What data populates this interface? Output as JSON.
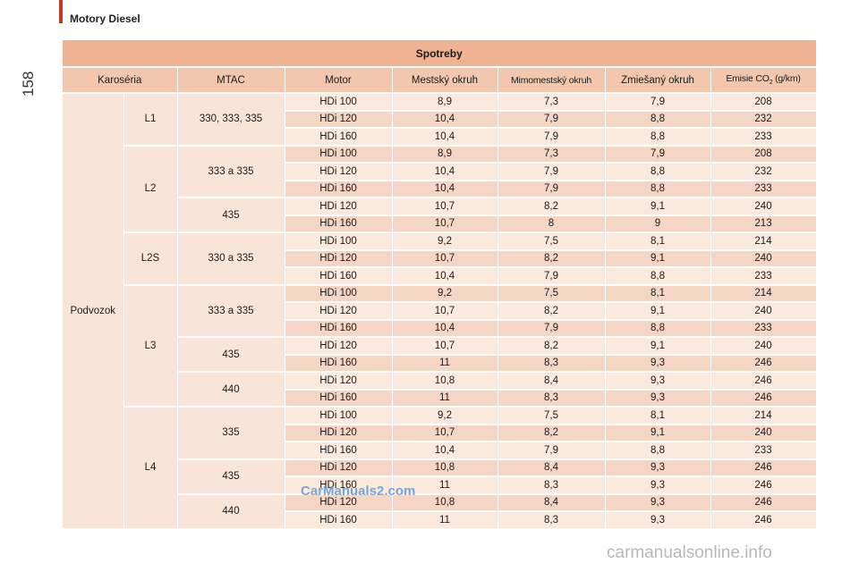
{
  "page": {
    "number": "158",
    "section_title": "Motory Diesel"
  },
  "table": {
    "title": "Spotreby",
    "headers": [
      "Karoséria",
      "MTAC",
      "Motor",
      "Mestský okruh",
      "Mimomestský okruh",
      "Zmiešaný okruh"
    ],
    "co2_header": {
      "prefix": "Emisie CO",
      "sub": "2",
      "suffix": " (g/km)"
    },
    "body_type": "Podvozok",
    "groups": [
      {
        "label": "L1",
        "subgroups": [
          {
            "mtac": "330, 333, 335",
            "rows": [
              [
                "HDi 100",
                "8,9",
                "7,3",
                "7,9",
                "208"
              ],
              [
                "HDi 120",
                "10,4",
                "7,9",
                "8,8",
                "232"
              ],
              [
                "HDi 160",
                "10,4",
                "7,9",
                "8,8",
                "233"
              ]
            ]
          }
        ]
      },
      {
        "label": "L2",
        "subgroups": [
          {
            "mtac": "333 a 335",
            "rows": [
              [
                "HDi 100",
                "8,9",
                "7,3",
                "7,9",
                "208"
              ],
              [
                "HDi 120",
                "10,4",
                "7,9",
                "8,8",
                "232"
              ],
              [
                "HDi 160",
                "10,4",
                "7,9",
                "8,8",
                "233"
              ]
            ]
          },
          {
            "mtac": "435",
            "rows": [
              [
                "HDi 120",
                "10,7",
                "8,2",
                "9,1",
                "240"
              ],
              [
                "HDi 160",
                "10,7",
                "8",
                "9",
                "213"
              ]
            ]
          }
        ]
      },
      {
        "label": "L2S",
        "subgroups": [
          {
            "mtac": "330 a 335",
            "rows": [
              [
                "HDi 100",
                "9,2",
                "7,5",
                "8,1",
                "214"
              ],
              [
                "HDi 120",
                "10,7",
                "8,2",
                "9,1",
                "240"
              ],
              [
                "HDi 160",
                "10,4",
                "7,9",
                "8,8",
                "233"
              ]
            ]
          }
        ]
      },
      {
        "label": "L3",
        "subgroups": [
          {
            "mtac": "333 a 335",
            "rows": [
              [
                "HDi 100",
                "9,2",
                "7,5",
                "8,1",
                "214"
              ],
              [
                "HDi 120",
                "10,7",
                "8,2",
                "9,1",
                "240"
              ],
              [
                "HDi 160",
                "10,4",
                "7,9",
                "8,8",
                "233"
              ]
            ]
          },
          {
            "mtac": "435",
            "rows": [
              [
                "HDi 120",
                "10,7",
                "8,2",
                "9,1",
                "240"
              ],
              [
                "HDi 160",
                "11",
                "8,3",
                "9,3",
                "246"
              ]
            ]
          },
          {
            "mtac": "440",
            "rows": [
              [
                "HDi 120",
                "10,8",
                "8,4",
                "9,3",
                "246"
              ],
              [
                "HDi 160",
                "11",
                "8,3",
                "9,3",
                "246"
              ]
            ]
          }
        ]
      },
      {
        "label": "L4",
        "subgroups": [
          {
            "mtac": "335",
            "rows": [
              [
                "HDi 100",
                "9,2",
                "7,5",
                "8,1",
                "214"
              ],
              [
                "HDi 120",
                "10,7",
                "8,2",
                "9,1",
                "240"
              ],
              [
                "HDi 160",
                "10,4",
                "7,9",
                "8,8",
                "233"
              ]
            ]
          },
          {
            "mtac": "435",
            "rows": [
              [
                "HDi 120",
                "10,8",
                "8,4",
                "9,3",
                "246"
              ],
              [
                "HDi 160",
                "11",
                "8,3",
                "9,3",
                "246"
              ]
            ]
          },
          {
            "mtac": "440",
            "rows": [
              [
                "HDi 120",
                "10,8",
                "8,4",
                "9,3",
                "246"
              ],
              [
                "HDi 160",
                "11",
                "8,3",
                "9,3",
                "246"
              ]
            ]
          }
        ]
      }
    ]
  },
  "watermarks": {
    "top": "CarManuals2.com",
    "bottom": "carmanualsonline.info"
  },
  "colors": {
    "accent": "#c0392b",
    "title_row": "#efb393",
    "header_row": "#f2c7ad",
    "row_light": "#fbe9dd",
    "row_dark": "#f5d6c5"
  }
}
